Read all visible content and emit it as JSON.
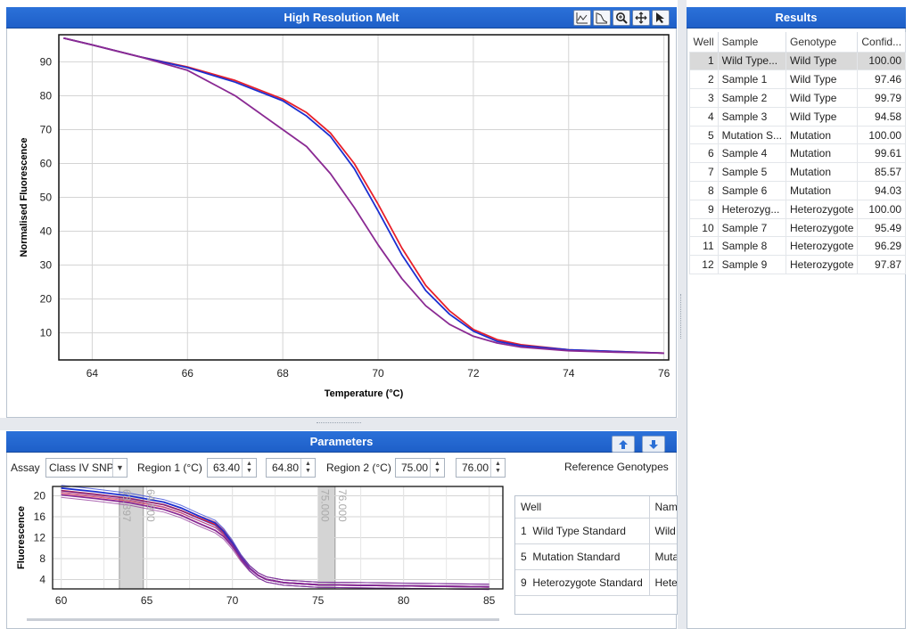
{
  "colors": {
    "accent": "#1f63cc",
    "wild_type": "#e8202a",
    "mutation": "#1c2fd0",
    "heterozygote": "#8a2a93",
    "region_band": "#cfcfcf"
  },
  "melt_panel": {
    "title": "High Resolution Melt",
    "toolbar": [
      "difference-plot-icon",
      "normalised-plot-icon",
      "zoom-icon",
      "pan-icon",
      "pointer-icon"
    ]
  },
  "parameters": {
    "title": "Parameters",
    "assay_label": "Assay",
    "assay_value": "Class IV SNP",
    "region1_label": "Region 1 (°C)",
    "region1_start": "63.40",
    "region1_end": "64.80",
    "region2_label": "Region 2 (°C)",
    "region2_start": "75.00",
    "region2_end": "76.00",
    "reference_label": "Reference Genotypes",
    "reference_table": {
      "headers": [
        "Well",
        "Nam"
      ],
      "rows": [
        {
          "well": "1",
          "label": "Wild Type Standard",
          "name": "Wild"
        },
        {
          "well": "5",
          "label": "Mutation Standard",
          "name": "Muta"
        },
        {
          "well": "9",
          "label": "Heterozygote Standard",
          "name": "Hete"
        }
      ]
    },
    "region_labels": [
      "63.397",
      "64.800",
      "75.000",
      "76.000"
    ]
  },
  "results": {
    "title": "Results",
    "headers": [
      "Well",
      "Sample",
      "Genotype",
      "Confid..."
    ],
    "rows": [
      {
        "well": "1",
        "sample": "Wild Type...",
        "genotype": "Wild Type",
        "conf": "100.00"
      },
      {
        "well": "2",
        "sample": "Sample 1",
        "genotype": "Wild Type",
        "conf": "97.46"
      },
      {
        "well": "3",
        "sample": "Sample 2",
        "genotype": "Wild Type",
        "conf": "99.79"
      },
      {
        "well": "4",
        "sample": "Sample 3",
        "genotype": "Wild Type",
        "conf": "94.58"
      },
      {
        "well": "5",
        "sample": "Mutation S...",
        "genotype": "Mutation",
        "conf": "100.00"
      },
      {
        "well": "6",
        "sample": "Sample 4",
        "genotype": "Mutation",
        "conf": "99.61"
      },
      {
        "well": "7",
        "sample": "Sample 5",
        "genotype": "Mutation",
        "conf": "85.57"
      },
      {
        "well": "8",
        "sample": "Sample 6",
        "genotype": "Mutation",
        "conf": "94.03"
      },
      {
        "well": "9",
        "sample": "Heterozyg...",
        "genotype": "Heterozygote",
        "conf": "100.00"
      },
      {
        "well": "10",
        "sample": "Sample 7",
        "genotype": "Heterozygote",
        "conf": "95.49"
      },
      {
        "well": "11",
        "sample": "Sample 8",
        "genotype": "Heterozygote",
        "conf": "96.29"
      },
      {
        "well": "12",
        "sample": "Sample 9",
        "genotype": "Heterozygote",
        "conf": "97.87"
      }
    ]
  },
  "chart_data": [
    {
      "type": "line",
      "title": "",
      "xlabel": "Temperature (°C)",
      "ylabel": "Normalised Fluorescence",
      "xlim": [
        63.3,
        76.1
      ],
      "ylim": [
        2,
        98
      ],
      "xticks": [
        64,
        66,
        68,
        70,
        72,
        74,
        76
      ],
      "yticks": [
        10,
        20,
        30,
        40,
        50,
        60,
        70,
        80,
        90
      ],
      "grid": true,
      "series": [
        {
          "group": "wild_type",
          "x": [
            63.4,
            64,
            65,
            66,
            67,
            68,
            68.5,
            69,
            69.5,
            70,
            70.5,
            71,
            71.5,
            72,
            72.5,
            73,
            74,
            75,
            76
          ],
          "y": [
            97,
            95,
            91.5,
            88.5,
            84.5,
            79,
            75,
            69,
            60,
            48,
            35,
            24,
            16.5,
            11,
            8,
            6.5,
            5,
            4.5,
            4
          ]
        },
        {
          "group": "mutation",
          "x": [
            63.4,
            64,
            65,
            66,
            67,
            68,
            68.5,
            69,
            69.5,
            70,
            70.5,
            71,
            71.5,
            72,
            72.5,
            73,
            74,
            75,
            76
          ],
          "y": [
            97,
            95,
            91.5,
            88.3,
            84,
            78.5,
            74,
            68,
            58.5,
            46,
            33,
            22.5,
            15.5,
            10.5,
            7.5,
            6.2,
            5,
            4.5,
            4
          ]
        },
        {
          "group": "heterozygote",
          "x": [
            63.4,
            64,
            65,
            66,
            67,
            67.5,
            68,
            68.5,
            69,
            69.5,
            70,
            70.5,
            71,
            71.5,
            72,
            72.5,
            73,
            74,
            75,
            76
          ],
          "y": [
            97,
            95,
            91.5,
            87.5,
            80,
            75,
            70,
            65,
            57,
            47,
            36,
            26,
            18,
            12.5,
            9,
            7,
            5.8,
            4.7,
            4.3,
            4
          ]
        }
      ]
    },
    {
      "type": "line",
      "title": "",
      "xlabel": "",
      "ylabel": "Fluorescence",
      "xlim": [
        59.5,
        85.8
      ],
      "ylim": [
        2.2,
        21.8
      ],
      "xticks": [
        60,
        65,
        70,
        75,
        80,
        85
      ],
      "yticks": [
        4,
        8,
        12,
        16,
        20
      ],
      "grid": true,
      "regions": [
        [
          63.4,
          64.8
        ],
        [
          75,
          76
        ]
      ],
      "series": [
        {
          "group": "wild_type",
          "x": [
            60,
            62,
            64,
            66,
            67,
            68,
            69,
            69.5,
            70,
            70.5,
            71,
            71.5,
            72,
            73,
            75,
            80,
            85
          ],
          "y": [
            21,
            20.3,
            19.5,
            18.3,
            17.2,
            15.8,
            14.5,
            13,
            10.8,
            8.2,
            6.2,
            4.8,
            4,
            3.4,
            3,
            2.8,
            2.6
          ]
        },
        {
          "group": "mutation",
          "x": [
            60,
            62,
            64,
            66,
            67,
            68,
            69,
            69.5,
            70,
            70.5,
            71,
            71.5,
            72,
            73,
            75,
            80,
            85
          ],
          "y": [
            21.5,
            20.8,
            20,
            18.8,
            17.7,
            16.2,
            14.8,
            13.2,
            11,
            8.3,
            6.2,
            4.8,
            4,
            3.4,
            3,
            2.8,
            2.6
          ]
        },
        {
          "group": "heterozygote",
          "x": [
            60,
            62,
            64,
            66,
            67,
            68,
            69,
            69.5,
            70,
            70.5,
            71,
            71.5,
            72,
            73,
            75,
            80,
            85
          ],
          "y": [
            20.2,
            19.5,
            18.7,
            17.4,
            16.3,
            14.8,
            13.4,
            12.2,
            10.3,
            8,
            6.1,
            4.8,
            4,
            3.4,
            3,
            2.8,
            2.6
          ]
        }
      ]
    }
  ]
}
